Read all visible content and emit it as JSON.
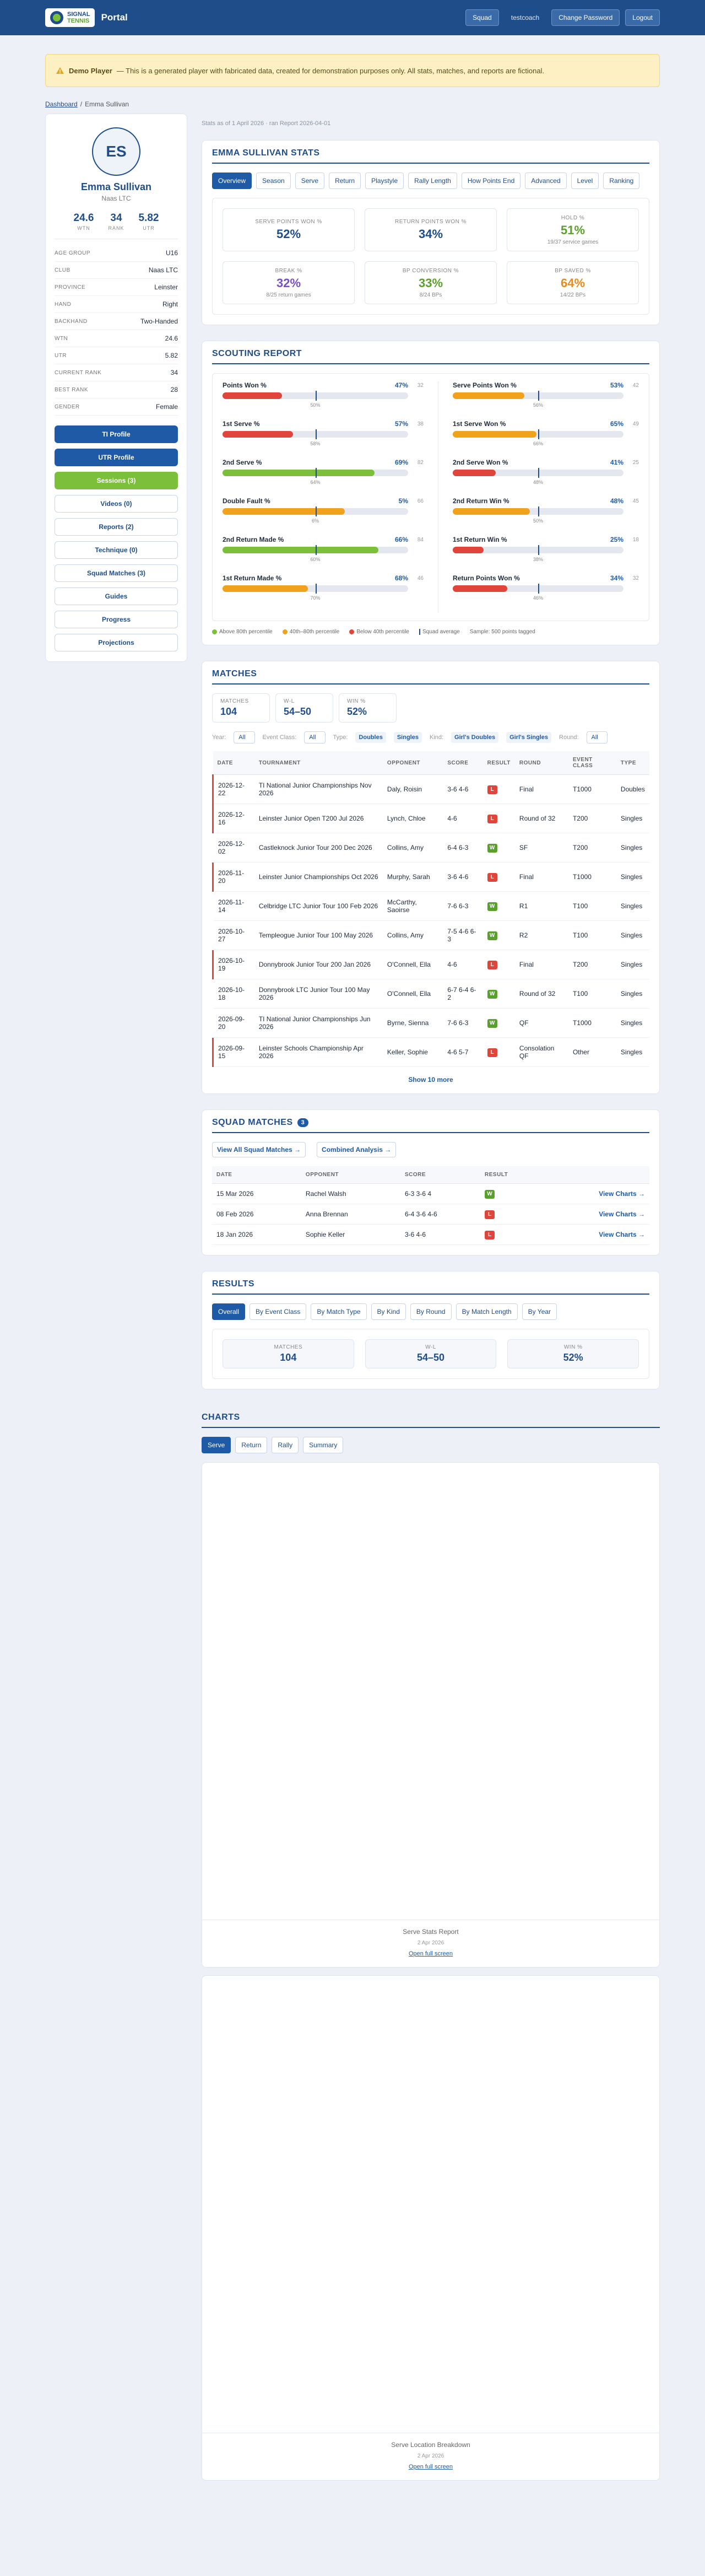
{
  "header": {
    "logo_top": "SIGNAL",
    "logo_bottom": "TENNIS",
    "title": "Portal",
    "nav": [
      "Squad",
      "testcoach",
      "Change Password",
      "Logout"
    ]
  },
  "banner": {
    "label": "Demo Player",
    "text": "— This is a generated player with fabricated data, created for demonstration purposes only. All stats, matches, and reports are fictional."
  },
  "breadcrumb": [
    "Dashboard",
    "Emma Sullivan"
  ],
  "profile": {
    "initials": "ES",
    "name": "Emma Sullivan",
    "club": "Naas LTC",
    "stats": [
      {
        "value": "24.6",
        "label": "WTN"
      },
      {
        "value": "34",
        "label": "RANK"
      },
      {
        "value": "5.82",
        "label": "UTR"
      }
    ],
    "details": [
      [
        "AGE GROUP",
        "U16"
      ],
      [
        "CLUB",
        "Naas LTC"
      ],
      [
        "PROVINCE",
        "Leinster"
      ],
      [
        "HAND",
        "Right"
      ],
      [
        "BACKHAND",
        "Two-Handed"
      ],
      [
        "WTN",
        "24.6"
      ],
      [
        "UTR",
        "5.82"
      ],
      [
        "CURRENT RANK",
        "34"
      ],
      [
        "BEST RANK",
        "28"
      ],
      [
        "GENDER",
        "Female"
      ]
    ],
    "buttons": [
      "TI Profile",
      "UTR Profile",
      "Sessions (3)",
      "Videos (0)",
      "Reports (2)",
      "Technique (0)",
      "Squad Matches (3)",
      "Guides",
      "Progress",
      "Projections"
    ]
  },
  "stats_date": "Stats as of 1 April 2026 · ran Report 2026-04-01",
  "stats": {
    "title": "EMMA SULLIVAN STATS",
    "tabs": [
      "Overview",
      "Season",
      "Serve",
      "Return",
      "Playstyle",
      "Rally Length",
      "How Points End",
      "Advanced",
      "Level",
      "Ranking"
    ],
    "cards": [
      {
        "label": "SERVE POINTS WON %",
        "value": "52%",
        "color": "#1f4d8a"
      },
      {
        "label": "RETURN POINTS WON %",
        "value": "34%",
        "color": "#1f4d8a"
      },
      {
        "label": "HOLD %",
        "value": "51%",
        "sub": "19/37 service games",
        "color": "#5aa02c"
      },
      {
        "label": "BREAK %",
        "value": "32%",
        "sub": "8/25 return games",
        "color": "#7b4fc4"
      },
      {
        "label": "BP CONVERSION %",
        "value": "33%",
        "sub": "8/24 BPs",
        "color": "#5aa02c"
      },
      {
        "label": "BP SAVED %",
        "value": "64%",
        "sub": "14/22 BPs",
        "color": "#e8891c"
      }
    ]
  },
  "scouting": {
    "title": "SCOUTING REPORT",
    "left": [
      {
        "label": "Points Won %",
        "value": "47%",
        "percentile": 32,
        "squad": "50%",
        "color": "#e0453b"
      },
      {
        "label": "1st Serve %",
        "value": "57%",
        "percentile": 38,
        "squad": "58%",
        "color": "#e0453b"
      },
      {
        "label": "2nd Serve %",
        "value": "69%",
        "percentile": 82,
        "squad": "64%",
        "color": "#7cbf3b"
      },
      {
        "label": "Double Fault %",
        "value": "5%",
        "percentile": 66,
        "squad": "6%",
        "color": "#f0a21c"
      },
      {
        "label": "2nd Return Made %",
        "value": "66%",
        "percentile": 84,
        "squad": "60%",
        "color": "#7cbf3b"
      },
      {
        "label": "1st Return Made %",
        "value": "68%",
        "percentile": 46,
        "squad": "70%",
        "color": "#f0a21c"
      }
    ],
    "right": [
      {
        "label": "Serve Points Won %",
        "value": "53%",
        "percentile": 42,
        "squad": "56%",
        "color": "#f0a21c"
      },
      {
        "label": "1st Serve Won %",
        "value": "65%",
        "percentile": 49,
        "squad": "66%",
        "color": "#f0a21c"
      },
      {
        "label": "2nd Serve Won %",
        "value": "41%",
        "percentile": 25,
        "squad": "48%",
        "color": "#e0453b"
      },
      {
        "label": "2nd Return Win %",
        "value": "48%",
        "percentile": 45,
        "squad": "50%",
        "color": "#f0a21c"
      },
      {
        "label": "1st Return Win %",
        "value": "25%",
        "percentile": 18,
        "squad": "38%",
        "color": "#e0453b"
      },
      {
        "label": "Return Points Won %",
        "value": "34%",
        "percentile": 32,
        "squad": "46%",
        "color": "#e0453b"
      }
    ],
    "legend": [
      {
        "label": "Above 80th percentile",
        "color": "#7cbf3b"
      },
      {
        "label": "40th–80th percentile",
        "color": "#f0a21c"
      },
      {
        "label": "Below 40th percentile",
        "color": "#e0453b"
      },
      {
        "label": "Squad average",
        "color": "#1f4d8a"
      }
    ],
    "sample": "Sample: 500 points tagged"
  },
  "matches": {
    "title": "MATCHES",
    "summary": [
      {
        "label": "MATCHES",
        "value": "104"
      },
      {
        "label": "W-L",
        "value": "54–50"
      },
      {
        "label": "WIN %",
        "value": "52%"
      }
    ],
    "filters": [
      {
        "label": "Year:",
        "options": [
          "All"
        ]
      },
      {
        "label": "Event Class:",
        "options": [
          "All"
        ]
      },
      {
        "label": "Type:",
        "options": [
          "Doubles",
          "Singles"
        ]
      },
      {
        "label": "Kind:",
        "options": [
          "Girl's Doubles",
          "Girl's Singles"
        ]
      },
      {
        "label": "Round:",
        "options": [
          "All"
        ]
      }
    ],
    "columns": [
      "DATE",
      "TOURNAMENT",
      "OPPONENT",
      "SCORE",
      "RESULT",
      "ROUND",
      "EVENT CLASS",
      "TYPE"
    ],
    "rows": [
      [
        "2026-12-22",
        "TI National Junior Championships Nov 2026",
        "Daly, Roisin",
        "3-6 4-6",
        "L",
        "Final",
        "T1000",
        "Doubles"
      ],
      [
        "2026-12-16",
        "Leinster Junior Open T200 Jul 2026",
        "Lynch, Chloe",
        "4-6",
        "L",
        "Round of 32",
        "T200",
        "Singles"
      ],
      [
        "2026-12-02",
        "Castleknock Junior Tour 200 Dec 2026",
        "Collins, Amy",
        "6-4 6-3",
        "W",
        "SF",
        "T200",
        "Singles"
      ],
      [
        "2026-11-20",
        "Leinster Junior Championships Oct 2026",
        "Murphy, Sarah",
        "3-6 4-6",
        "L",
        "Final",
        "T1000",
        "Singles"
      ],
      [
        "2026-11-14",
        "Celbridge LTC Junior Tour 100 Feb 2026",
        "McCarthy, Saoirse",
        "7-6 6-3",
        "W",
        "R1",
        "T100",
        "Singles"
      ],
      [
        "2026-10-27",
        "Templeogue Junior Tour 100 May 2026",
        "Collins, Amy",
        "7-5 4-6 6-3",
        "W",
        "R2",
        "T100",
        "Singles"
      ],
      [
        "2026-10-19",
        "Donnybrook Junior Tour 200 Jan 2026",
        "O'Connell, Ella",
        "4-6",
        "L",
        "Final",
        "T200",
        "Singles"
      ],
      [
        "2026-10-18",
        "Donnybrook LTC Junior Tour 100 May 2026",
        "O'Connell, Ella",
        "6-7 6-4 6-2",
        "W",
        "Round of 32",
        "T100",
        "Singles"
      ],
      [
        "2026-09-20",
        "TI National Junior Championships Jun 2026",
        "Byrne, Sienna",
        "7-6 6-3",
        "W",
        "QF",
        "T1000",
        "Singles"
      ],
      [
        "2026-09-15",
        "Leinster Schools Championship Apr 2026",
        "Keller, Sophie",
        "4-6 5-7",
        "L",
        "Consolation QF",
        "Other",
        "Singles"
      ]
    ],
    "more": "Show 10 more"
  },
  "squad_matches": {
    "title": "SQUAD MATCHES",
    "count": 3,
    "links": [
      "View All Squad Matches →",
      "Combined Analysis →"
    ],
    "columns": [
      "DATE",
      "OPPONENT",
      "SCORE",
      "RESULT"
    ],
    "rows": [
      [
        "15 Mar 2026",
        "Rachel Walsh",
        "6-3 3-6 4",
        "W"
      ],
      [
        "08 Feb 2026",
        "Anna Brennan",
        "6-4 3-6 4-6",
        "L"
      ],
      [
        "18 Jan 2026",
        "Sophie Keller",
        "3-6 4-6",
        "L"
      ]
    ],
    "action": "View Charts →"
  },
  "results": {
    "title": "RESULTS",
    "tabs": [
      "Overall",
      "By Event Class",
      "By Match Type",
      "By Kind",
      "By Round",
      "By Match Length",
      "By Year"
    ],
    "summary": [
      {
        "label": "MATCHES",
        "value": "104"
      },
      {
        "label": "W-L",
        "value": "54–50"
      },
      {
        "label": "WIN %",
        "value": "52%"
      }
    ]
  },
  "charts": {
    "title": "CHARTS",
    "tabs": [
      "Serve",
      "Return",
      "Rally",
      "Summary"
    ],
    "panels": [
      {
        "title": "Serve Stats Report",
        "date": "2 Apr 2026",
        "link": "Open full screen"
      },
      {
        "title": "Serve Location Breakdown",
        "date": "2 Apr 2026",
        "link": "Open full screen"
      }
    ]
  }
}
